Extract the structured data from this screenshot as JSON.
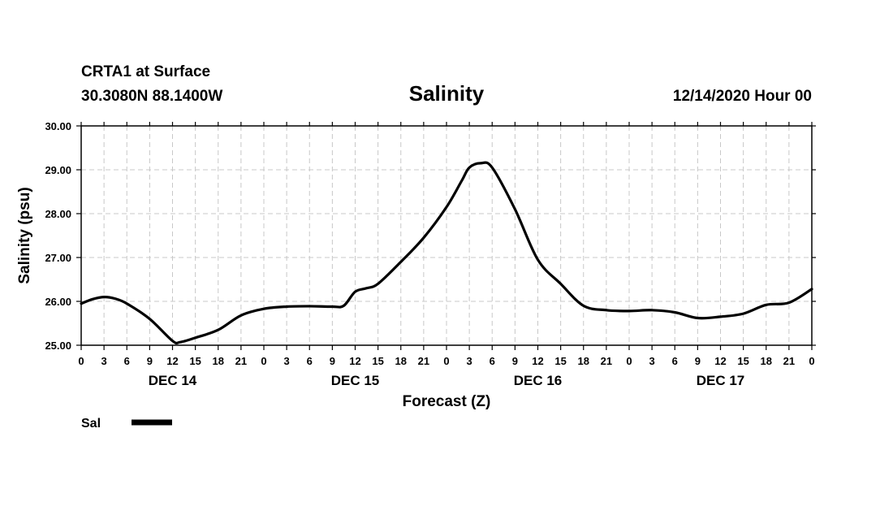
{
  "chart_data": {
    "type": "line",
    "station": "CRTA1 at Surface",
    "location": "30.3080N 88.1400W",
    "title": "Salinity",
    "run_label": "12/14/2020 Hour 00",
    "ylabel": "Salinity (psu)",
    "xlabel": "Forecast (Z)",
    "ylim": [
      25.0,
      30.0
    ],
    "y_ticks": [
      "25.00",
      "26.00",
      "27.00",
      "28.00",
      "29.00",
      "30.00"
    ],
    "xlim_hours": [
      0,
      96
    ],
    "x_tick_step_hours": 3,
    "x_tick_labels": [
      "0",
      "3",
      "6",
      "9",
      "12",
      "15",
      "18",
      "21",
      "0",
      "3",
      "6",
      "9",
      "12",
      "15",
      "18",
      "21",
      "0",
      "3",
      "6",
      "9",
      "12",
      "15",
      "18",
      "21",
      "0",
      "3",
      "6",
      "9",
      "12",
      "15",
      "18",
      "21",
      "0"
    ],
    "day_labels": [
      {
        "label": "DEC 14",
        "center_hour": 12
      },
      {
        "label": "DEC 15",
        "center_hour": 36
      },
      {
        "label": "DEC 16",
        "center_hour": 60
      },
      {
        "label": "DEC 17",
        "center_hour": 84
      }
    ],
    "grid": true,
    "legend": {
      "position": "bottom-left"
    },
    "series": [
      {
        "name": "Sal",
        "color": "#000000",
        "points": [
          [
            0,
            25.95
          ],
          [
            1.5,
            26.05
          ],
          [
            3,
            26.1
          ],
          [
            4.5,
            26.06
          ],
          [
            6,
            25.95
          ],
          [
            9,
            25.6
          ],
          [
            12,
            25.1
          ],
          [
            13,
            25.07
          ],
          [
            15,
            25.17
          ],
          [
            18,
            25.35
          ],
          [
            21,
            25.68
          ],
          [
            24,
            25.83
          ],
          [
            27,
            25.88
          ],
          [
            30,
            25.89
          ],
          [
            33,
            25.88
          ],
          [
            34.5,
            25.9
          ],
          [
            36,
            26.22
          ],
          [
            37.5,
            26.3
          ],
          [
            39,
            26.4
          ],
          [
            42,
            26.9
          ],
          [
            45,
            27.45
          ],
          [
            48,
            28.15
          ],
          [
            50,
            28.75
          ],
          [
            51,
            29.05
          ],
          [
            52.5,
            29.15
          ],
          [
            54,
            29.05
          ],
          [
            57,
            28.1
          ],
          [
            60,
            26.95
          ],
          [
            63,
            26.4
          ],
          [
            66,
            25.9
          ],
          [
            69,
            25.8
          ],
          [
            72,
            25.78
          ],
          [
            75,
            25.8
          ],
          [
            78,
            25.75
          ],
          [
            81,
            25.62
          ],
          [
            84,
            25.65
          ],
          [
            87,
            25.72
          ],
          [
            90,
            25.92
          ],
          [
            93,
            25.97
          ],
          [
            96,
            26.28
          ]
        ]
      }
    ]
  }
}
